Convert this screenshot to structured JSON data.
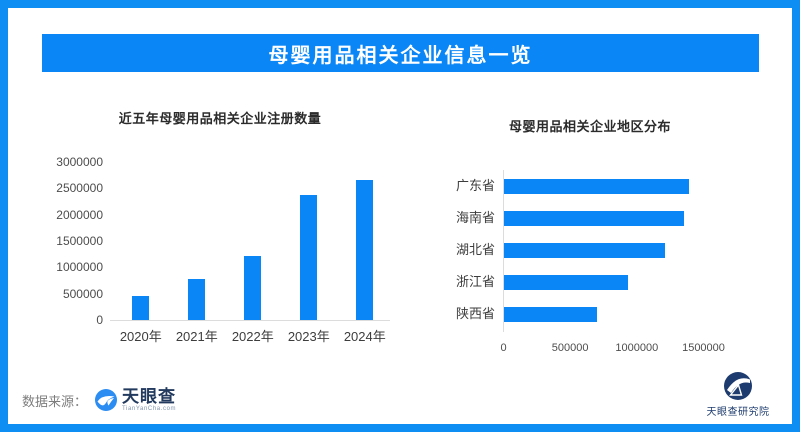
{
  "page": {
    "title": "母婴用品相关企业信息一览",
    "accent_color": "#0a86f7",
    "border_color": "#0e8df2"
  },
  "chart_data": [
    {
      "type": "bar",
      "orientation": "vertical",
      "title": "近五年母婴用品相关企业注册数量",
      "categories": [
        "2020年",
        "2021年",
        "2022年",
        "2023年",
        "2024年"
      ],
      "values": [
        450000,
        780000,
        1220000,
        2380000,
        2660000
      ],
      "ylabel": "",
      "xlabel": "",
      "ylim": [
        0,
        3000000
      ],
      "yticks": [
        0,
        500000,
        1000000,
        1500000,
        2000000,
        2500000,
        3000000
      ],
      "grid": false,
      "bar_color": "#0a86f7"
    },
    {
      "type": "bar",
      "orientation": "horizontal",
      "title": "母婴用品相关企业地区分布",
      "categories": [
        "广东省",
        "海南省",
        "湖北省",
        "浙江省",
        "陕西省"
      ],
      "values": [
        1390000,
        1350000,
        1210000,
        930000,
        700000
      ],
      "xlim": [
        0,
        1500000
      ],
      "xticks": [
        0,
        500000,
        1000000,
        1500000
      ],
      "grid": false,
      "bar_color": "#0a86f7"
    }
  ],
  "footer": {
    "source_label": "数据来源：",
    "source_logo_text": "天眼查",
    "source_logo_subtext": "TianYanCha.com",
    "institute_label": "天眼查研究院"
  }
}
